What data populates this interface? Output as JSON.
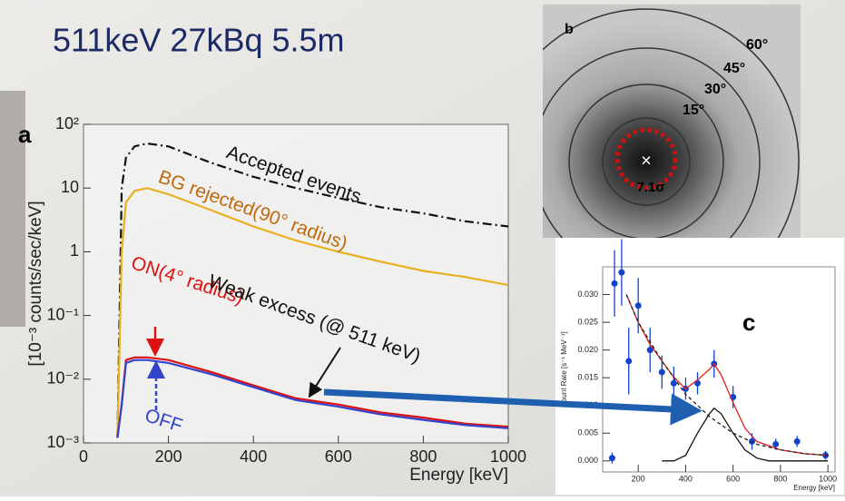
{
  "title": "511keV 27kBq  5.5m",
  "image_panel": {
    "label": "b",
    "rings": [
      "60°",
      "45°",
      "30°",
      "15°"
    ],
    "significance": "7.1σ"
  },
  "chart_data": [
    {
      "type": "line",
      "label": "a",
      "log_y": true,
      "xlabel": "Energy [keV]",
      "ylabel": "[10⁻³ counts/sec/keV]",
      "x": [
        80,
        90,
        100,
        120,
        150,
        200,
        300,
        400,
        500,
        600,
        700,
        800,
        900,
        1000
      ],
      "series": [
        {
          "name": "Accepted events",
          "color": "#111111",
          "dash": "dashdot",
          "values": [
            0.0012,
            10,
            30,
            45,
            50,
            45,
            25,
            15,
            10,
            7,
            5,
            4,
            3,
            2.5
          ]
        },
        {
          "name": "BG rejected(90° radius)",
          "color": "#e8b020",
          "dash": "solid",
          "values": [
            0.0012,
            1,
            6,
            9,
            10,
            8,
            4.5,
            2.5,
            1.5,
            1,
            0.7,
            0.5,
            0.4,
            0.3
          ]
        },
        {
          "name": "ON(4° radius)",
          "color": "#dd1111",
          "dash": "solid",
          "values": [
            0.0012,
            0.004,
            0.02,
            0.022,
            0.022,
            0.02,
            0.013,
            0.008,
            0.005,
            0.004,
            0.003,
            0.0025,
            0.002,
            0.0018
          ]
        },
        {
          "name": "OFF",
          "color": "#3344cc",
          "dash": "solid",
          "values": [
            0.0012,
            0.004,
            0.018,
            0.02,
            0.02,
            0.018,
            0.012,
            0.0075,
            0.0047,
            0.0037,
            0.0028,
            0.0023,
            0.0019,
            0.0017
          ]
        }
      ],
      "annotations": [
        "Weak excess (@ 511 keV)"
      ],
      "xlim": [
        0,
        1000
      ],
      "ylim": [
        0.001,
        100
      ],
      "xticks": [
        0,
        200,
        400,
        600,
        800,
        1000
      ],
      "yticks": [
        {
          "value": 0.001,
          "label": "10⁻³"
        },
        {
          "value": 0.01,
          "label": "10⁻²"
        },
        {
          "value": 0.1,
          "label": "10⁻¹"
        },
        1,
        10,
        {
          "value": 100,
          "label": "10²"
        }
      ]
    },
    {
      "type": "scatter",
      "label": "c",
      "xlabel": "Energy [keV]",
      "ylabel": "Count Rate [s⁻¹ MeV⁻¹]",
      "series": [
        {
          "kind": "points",
          "color": "#1144cc",
          "x": [
            90,
            100,
            130,
            160,
            200,
            250,
            300,
            350,
            400,
            450,
            520,
            600,
            680,
            780,
            870,
            990
          ],
          "values": [
            0.0005,
            0.032,
            0.034,
            0.018,
            0.028,
            0.02,
            0.016,
            0.014,
            0.013,
            0.014,
            0.0175,
            0.0115,
            0.0035,
            0.003,
            0.0035,
            0.001
          ],
          "errors": [
            0.001,
            0.006,
            0.006,
            0.006,
            0.005,
            0.004,
            0.003,
            0.003,
            0.002,
            0.002,
            0.0025,
            0.002,
            0.0015,
            0.001,
            0.001,
            0.0008
          ]
        },
        {
          "kind": "line",
          "color": "#dd2222",
          "dash": "solid",
          "x": [
            150,
            200,
            250,
            300,
            350,
            400,
            450,
            500,
            520,
            550,
            600,
            650,
            700,
            800,
            900,
            1000
          ],
          "values": [
            0.03,
            0.025,
            0.021,
            0.018,
            0.0151,
            0.013,
            0.0146,
            0.0165,
            0.0175,
            0.0155,
            0.0105,
            0.0059,
            0.0035,
            0.002,
            0.0013,
            0.001
          ]
        },
        {
          "kind": "line",
          "color": "#222222",
          "dash": "dashed",
          "x": [
            150,
            200,
            300,
            400,
            500,
            600,
            700,
            800,
            900,
            1000
          ],
          "values": [
            0.03,
            0.025,
            0.018,
            0.012,
            0.008,
            0.005,
            0.003,
            0.002,
            0.0013,
            0.001
          ]
        },
        {
          "kind": "line",
          "color": "#111111",
          "dash": "solid",
          "x": [
            300,
            350,
            400,
            450,
            500,
            520,
            550,
            600,
            650,
            700,
            750,
            1000
          ],
          "values": [
            0,
            0,
            0.001,
            0.005,
            0.0085,
            0.0095,
            0.0085,
            0.005,
            0.002,
            0.0005,
            0,
            0
          ]
        }
      ],
      "xlim": [
        50,
        1030
      ],
      "ylim": [
        -0.002,
        0.035
      ],
      "xticks": [
        200,
        400,
        600,
        800,
        1000
      ],
      "yticks": [
        {
          "value": 0,
          "label": "0.000"
        },
        {
          "value": 0.005,
          "label": "0.005"
        },
        {
          "value": 0.01,
          "label": "0.010"
        },
        {
          "value": 0.015,
          "label": "0.015"
        },
        {
          "value": 0.02,
          "label": "0.020"
        },
        {
          "value": 0.025,
          "label": "0.025"
        },
        {
          "value": 0.03,
          "label": "0.030"
        }
      ]
    }
  ]
}
